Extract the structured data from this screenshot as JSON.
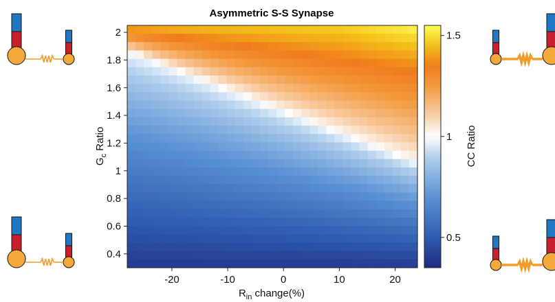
{
  "chart_data": {
    "type": "heatmap",
    "title": "Asymmetric S-S Synapse",
    "xlabel": {
      "main": "R",
      "sub": "in",
      "rest": " change(%)"
    },
    "ylabel": {
      "main": "G",
      "sub": "c",
      "rest": " Ratio"
    },
    "colorbar_label": "CC Ratio",
    "x_range": [
      -28,
      24
    ],
    "y_range": [
      0.3,
      2.05
    ],
    "x_ticks": [
      "-20",
      "-10",
      "0",
      "10",
      "20"
    ],
    "x_tick_values": [
      -20,
      -10,
      0,
      10,
      20
    ],
    "y_ticks": [
      "2",
      "1.8",
      "1.6",
      "1.4",
      "1.2",
      "1",
      "0.8",
      "0.6",
      "0.4"
    ],
    "y_tick_values": [
      2,
      1.8,
      1.6,
      1.4,
      1.2,
      1,
      0.8,
      0.6,
      0.4
    ],
    "colorbar_range": [
      0.35,
      1.55
    ],
    "colorbar_ticks": [
      "1.5",
      "1",
      "0.5"
    ],
    "colorbar_tick_values": [
      1.5,
      1.0,
      0.5
    ],
    "colormap": [
      "#1f2a80",
      "#2e5cb0",
      "#5b92d4",
      "#b2d0ec",
      "#ffffff",
      "#f7c89a",
      "#f39a3f",
      "#f07c1c",
      "#f4c01a",
      "#ffff55"
    ],
    "grid": false,
    "nx": 35,
    "ny": 29,
    "value_model": {
      "white_line": "CC Ratio = 1 where G_c ratio = 1.43 - 0.0156 * R_in change(%)",
      "yellow_corner": "CC Ratio reaches ~1.5 at R_in change ~ +22%, G_c ratio ~ 2.0",
      "dark_corner": "CC Ratio ~0.4 at R_in change ~ -28%, G_c ratio ~ 0.3"
    }
  },
  "icons": {
    "top_left": {
      "left_cell": "large",
      "right_cell": "small",
      "spring": "thin"
    },
    "top_right": {
      "left_cell": "small",
      "right_cell": "large",
      "spring": "thick"
    },
    "bottom_left": {
      "left_cell": "large",
      "right_cell": "small",
      "spring": "thin"
    },
    "bottom_right": {
      "left_cell": "small",
      "right_cell": "large",
      "spring": "thick"
    },
    "colors": {
      "soma": "#f6a93b",
      "dendrite_red": "#c8202f",
      "dendrite_blue": "#1f78c1",
      "spring": "#f39a2b"
    }
  }
}
